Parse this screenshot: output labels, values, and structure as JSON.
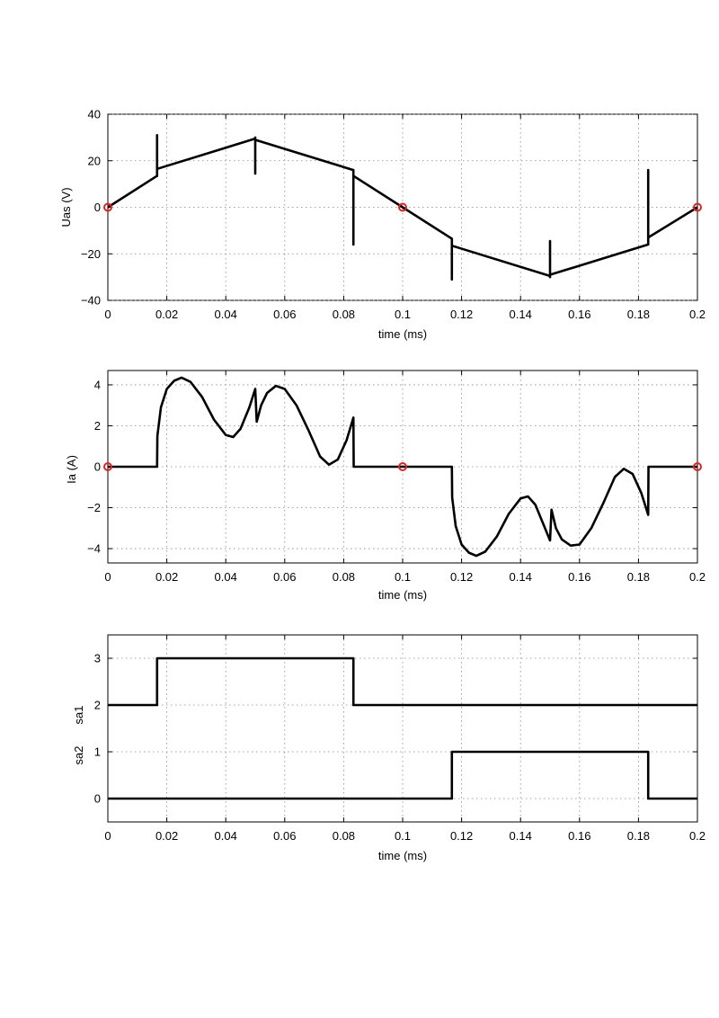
{
  "chart_data": [
    {
      "type": "line",
      "xlabel": "time (ms)",
      "ylabel": "Uas (V)",
      "xlim": [
        0,
        0.2
      ],
      "ylim": [
        -40,
        40
      ],
      "xticks": [
        0,
        0.02,
        0.04,
        0.06,
        0.08,
        0.1,
        0.12,
        0.14,
        0.16,
        0.18,
        0.2
      ],
      "xtick_labels": [
        "0",
        "0.02",
        "0.04",
        "0.06",
        "0.08",
        "0.1",
        "0.12",
        "0.14",
        "0.16",
        "0.18",
        "0.2"
      ],
      "yticks": [
        -40,
        -20,
        0,
        20,
        40
      ],
      "ytick_labels": [
        "−40",
        "−20",
        "0",
        "20",
        "40"
      ],
      "grid": true,
      "series": [
        {
          "color": "#000000",
          "x": [
            0,
            0.0167,
            0.0167,
            0.0167,
            0.0167,
            0.05,
            0.05,
            0.05,
            0.05,
            0.0833,
            0.0833,
            0.0833,
            0.0833,
            0.1,
            0.1167,
            0.1167,
            0.1167,
            0.1167,
            0.15,
            0.15,
            0.15,
            0.15,
            0.1833,
            0.1833,
            0.1833,
            0.1833,
            0.2
          ],
          "y": [
            0,
            13.5,
            31,
            13.5,
            16.5,
            29.5,
            14.5,
            30,
            29,
            16,
            -16,
            16,
            13.5,
            0,
            -13.5,
            -31,
            -13.5,
            -16.5,
            -29.5,
            -14.5,
            -30,
            -29,
            -16,
            16,
            -16,
            -13,
            0
          ]
        }
      ],
      "markers": {
        "color": "#d62728",
        "x": [
          0,
          0.1,
          0.2
        ],
        "y": [
          0,
          0,
          0
        ]
      }
    },
    {
      "type": "line",
      "xlabel": "time (ms)",
      "ylabel": "Ia (A)",
      "xlim": [
        0,
        0.2
      ],
      "ylim": [
        -4.7,
        4.7
      ],
      "xticks": [
        0,
        0.02,
        0.04,
        0.06,
        0.08,
        0.1,
        0.12,
        0.14,
        0.16,
        0.18,
        0.2
      ],
      "xtick_labels": [
        "0",
        "0.02",
        "0.04",
        "0.06",
        "0.08",
        "0.1",
        "0.12",
        "0.14",
        "0.16",
        "0.18",
        "0.2"
      ],
      "yticks": [
        -4,
        -2,
        0,
        2,
        4
      ],
      "ytick_labels": [
        "−4",
        "−2",
        "0",
        "2",
        "4"
      ],
      "grid": true,
      "series": [
        {
          "color": "#000000",
          "x": [
            0,
            0.0167,
            0.0168,
            0.018,
            0.02,
            0.0225,
            0.025,
            0.028,
            0.032,
            0.036,
            0.04,
            0.0425,
            0.045,
            0.048,
            0.05,
            0.0505,
            0.052,
            0.054,
            0.057,
            0.06,
            0.064,
            0.068,
            0.072,
            0.075,
            0.078,
            0.081,
            0.0833,
            0.0834,
            0.1,
            0.1167,
            0.1168,
            0.118,
            0.12,
            0.1225,
            0.125,
            0.128,
            0.132,
            0.136,
            0.14,
            0.1425,
            0.145,
            0.148,
            0.15,
            0.1505,
            0.152,
            0.154,
            0.157,
            0.16,
            0.164,
            0.168,
            0.172,
            0.175,
            0.178,
            0.181,
            0.1833,
            0.1834,
            0.2
          ],
          "y": [
            0,
            0,
            1.5,
            2.9,
            3.8,
            4.2,
            4.35,
            4.15,
            3.4,
            2.3,
            1.55,
            1.45,
            1.85,
            2.9,
            3.8,
            2.2,
            3.0,
            3.6,
            3.95,
            3.8,
            3.0,
            1.8,
            0.5,
            0.1,
            0.35,
            1.3,
            2.4,
            0,
            0,
            0,
            -1.5,
            -2.9,
            -3.8,
            -4.2,
            -4.35,
            -4.15,
            -3.4,
            -2.3,
            -1.55,
            -1.45,
            -1.85,
            -2.9,
            -3.6,
            -2.1,
            -3.0,
            -3.55,
            -3.85,
            -3.8,
            -3.0,
            -1.8,
            -0.5,
            -0.1,
            -0.35,
            -1.3,
            -2.35,
            0,
            0
          ]
        }
      ],
      "markers": {
        "color": "#d62728",
        "x": [
          0,
          0.1,
          0.2
        ],
        "y": [
          0,
          0,
          0
        ]
      }
    },
    {
      "type": "line",
      "xlabel": "time (ms)",
      "ylabel_top": "sa1",
      "ylabel_bottom": "sa2",
      "xlim": [
        0,
        0.2
      ],
      "ylim": [
        -0.5,
        3.5
      ],
      "xticks": [
        0,
        0.02,
        0.04,
        0.06,
        0.08,
        0.1,
        0.12,
        0.14,
        0.16,
        0.18,
        0.2
      ],
      "xtick_labels": [
        "0",
        "0.02",
        "0.04",
        "0.06",
        "0.08",
        "0.1",
        "0.12",
        "0.14",
        "0.16",
        "0.18",
        "0.2"
      ],
      "yticks": [
        0,
        1,
        2,
        3
      ],
      "ytick_labels": [
        "0",
        "1",
        "2",
        "3"
      ],
      "grid": true,
      "series": [
        {
          "color": "#000000",
          "x": [
            0,
            0.0167,
            0.0167,
            0.0833,
            0.0833,
            0.2
          ],
          "y": [
            2,
            2,
            3,
            3,
            2,
            2
          ]
        },
        {
          "color": "#000000",
          "x": [
            0,
            0.1167,
            0.1167,
            0.1833,
            0.1833,
            0.2
          ],
          "y": [
            0,
            0,
            1,
            1,
            0,
            0
          ]
        }
      ]
    }
  ]
}
